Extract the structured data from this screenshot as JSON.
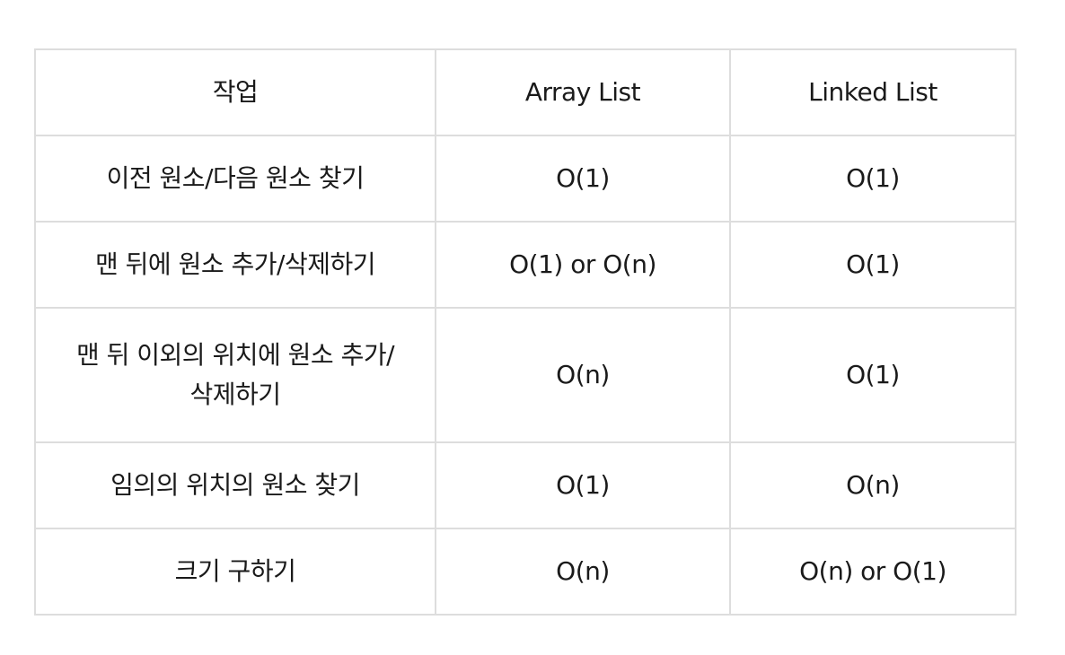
{
  "table": {
    "header": [
      "작업",
      "Array List",
      "Linked List"
    ],
    "rows": [
      [
        "이전 원소/다음 원소 찾기",
        "O(1)",
        "O(1)"
      ],
      [
        "맨 뒤에 원소 추가/삭제하기",
        "O(1) or O(n)",
        "O(1)"
      ],
      [
        "맨 뒤 이외의 위치에 원소 추가/\n삭제하기",
        "O(n)",
        "O(1)"
      ],
      [
        "임의의 위치의 원소 찾기",
        "O(1)",
        "O(n)"
      ],
      [
        "크기 구하기",
        "O(n)",
        "O(n) or O(1)"
      ]
    ]
  }
}
